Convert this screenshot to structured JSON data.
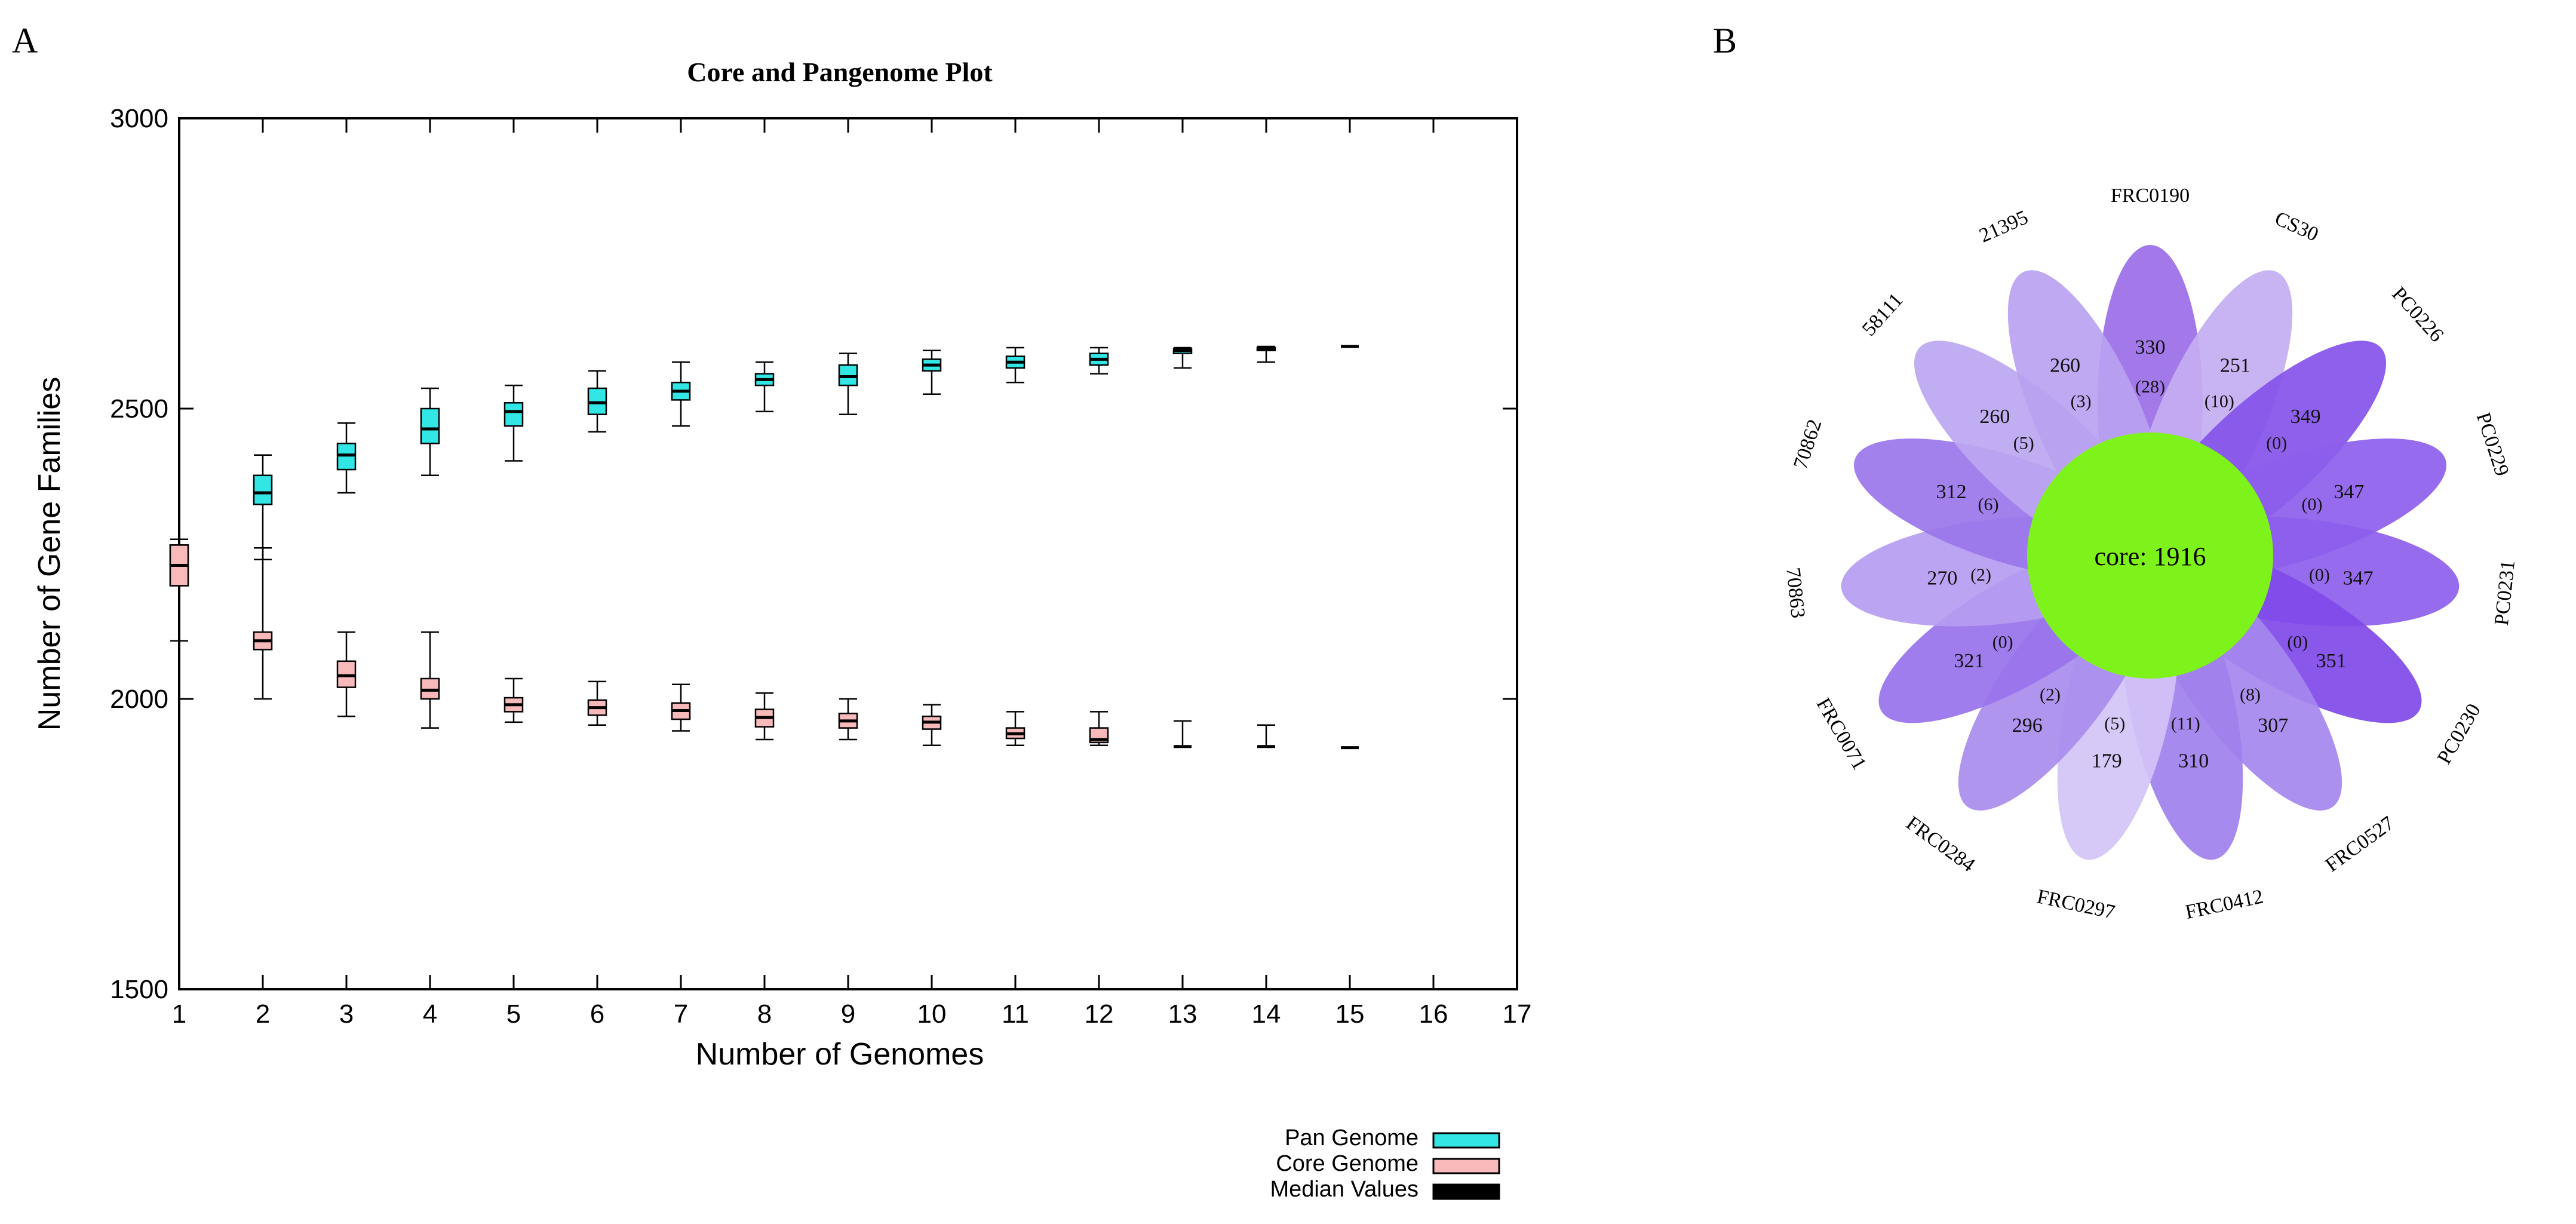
{
  "colors": {
    "pan_fill": "#33e6e6",
    "core_fill": "#f7b9b9",
    "median": "#000000",
    "core_circle": "#7ef31b",
    "petal_text": "#111111",
    "axis": "#000000"
  },
  "panel_a": {
    "label": "A"
  },
  "panel_b": {
    "label": "B"
  },
  "chart_data": [
    {
      "type": "boxplot",
      "title": "Core and Pangenome Plot",
      "xlabel": "Number of Genomes",
      "ylabel": "Number of Gene Families",
      "xlim": [
        1,
        17
      ],
      "ylim": [
        1500,
        3000
      ],
      "xticks": [
        "1",
        "2",
        "3",
        "4",
        "5",
        "6",
        "7",
        "8",
        "9",
        "10",
        "11",
        "12",
        "13",
        "14",
        "15",
        "16",
        "17"
      ],
      "yticks": [
        "1500",
        "2000",
        "2500",
        "3000"
      ],
      "grid": false,
      "legend_position": "bottom-right",
      "legend": [
        "Pan Genome",
        "Core Genome",
        "Median Values"
      ],
      "series": [
        {
          "name": "Pan Genome",
          "boxes": [
            {
              "x": 1,
              "min": 2100,
              "q1": 2195,
              "median": 2230,
              "q3": 2265,
              "max": 2275
            },
            {
              "x": 2,
              "min": 2240,
              "q1": 2335,
              "median": 2355,
              "q3": 2385,
              "max": 2420
            },
            {
              "x": 3,
              "min": 2355,
              "q1": 2395,
              "median": 2420,
              "q3": 2440,
              "max": 2475
            },
            {
              "x": 4,
              "min": 2385,
              "q1": 2440,
              "median": 2465,
              "q3": 2500,
              "max": 2535
            },
            {
              "x": 5,
              "min": 2410,
              "q1": 2470,
              "median": 2495,
              "q3": 2510,
              "max": 2540
            },
            {
              "x": 6,
              "min": 2460,
              "q1": 2490,
              "median": 2510,
              "q3": 2535,
              "max": 2565
            },
            {
              "x": 7,
              "min": 2470,
              "q1": 2515,
              "median": 2530,
              "q3": 2545,
              "max": 2580
            },
            {
              "x": 8,
              "min": 2495,
              "q1": 2540,
              "median": 2550,
              "q3": 2560,
              "max": 2580
            },
            {
              "x": 9,
              "min": 2490,
              "q1": 2540,
              "median": 2555,
              "q3": 2575,
              "max": 2595
            },
            {
              "x": 10,
              "min": 2525,
              "q1": 2565,
              "median": 2575,
              "q3": 2585,
              "max": 2600
            },
            {
              "x": 11,
              "min": 2545,
              "q1": 2570,
              "median": 2580,
              "q3": 2590,
              "max": 2605
            },
            {
              "x": 12,
              "min": 2560,
              "q1": 2575,
              "median": 2585,
              "q3": 2595,
              "max": 2605
            },
            {
              "x": 13,
              "min": 2570,
              "q1": 2595,
              "median": 2600,
              "q3": 2603,
              "max": 2605
            },
            {
              "x": 14,
              "min": 2580,
              "q1": 2600,
              "median": 2603,
              "q3": 2605,
              "max": 2607
            },
            {
              "x": 15,
              "min": 2607,
              "q1": 2607,
              "median": 2607,
              "q3": 2607,
              "max": 2607
            }
          ]
        },
        {
          "name": "Core Genome",
          "boxes": [
            {
              "x": 1,
              "min": 2100,
              "q1": 2195,
              "median": 2230,
              "q3": 2265,
              "max": 2275
            },
            {
              "x": 2,
              "min": 2000,
              "q1": 2085,
              "median": 2100,
              "q3": 2115,
              "max": 2260
            },
            {
              "x": 3,
              "min": 1970,
              "q1": 2020,
              "median": 2040,
              "q3": 2065,
              "max": 2115
            },
            {
              "x": 4,
              "min": 1950,
              "q1": 2000,
              "median": 2015,
              "q3": 2035,
              "max": 2115
            },
            {
              "x": 5,
              "min": 1960,
              "q1": 1978,
              "median": 1990,
              "q3": 2002,
              "max": 2035
            },
            {
              "x": 6,
              "min": 1955,
              "q1": 1972,
              "median": 1985,
              "q3": 1998,
              "max": 2030
            },
            {
              "x": 7,
              "min": 1945,
              "q1": 1965,
              "median": 1980,
              "q3": 1993,
              "max": 2025
            },
            {
              "x": 8,
              "min": 1930,
              "q1": 1952,
              "median": 1968,
              "q3": 1982,
              "max": 2010
            },
            {
              "x": 9,
              "min": 1930,
              "q1": 1950,
              "median": 1962,
              "q3": 1975,
              "max": 2000
            },
            {
              "x": 10,
              "min": 1920,
              "q1": 1948,
              "median": 1960,
              "q3": 1970,
              "max": 1990
            },
            {
              "x": 11,
              "min": 1920,
              "q1": 1932,
              "median": 1940,
              "q3": 1950,
              "max": 1978
            },
            {
              "x": 12,
              "min": 1920,
              "q1": 1925,
              "median": 1930,
              "q3": 1950,
              "max": 1978
            },
            {
              "x": 13,
              "min": 1918,
              "q1": 1918,
              "median": 1918,
              "q3": 1918,
              "max": 1962
            },
            {
              "x": 14,
              "min": 1918,
              "q1": 1918,
              "median": 1918,
              "q3": 1918,
              "max": 1955
            },
            {
              "x": 15,
              "min": 1916,
              "q1": 1916,
              "median": 1916,
              "q3": 1916,
              "max": 1916
            }
          ]
        }
      ]
    },
    {
      "type": "flower",
      "core_label": "core: 1916",
      "petals": [
        {
          "genome": "FRC0190",
          "count": "330",
          "unique": "(28)",
          "color": "#9b6ee8"
        },
        {
          "genome": "CS30",
          "count": "251",
          "unique": "(10)",
          "color": "#c4aef2"
        },
        {
          "genome": "PC0226",
          "count": "349",
          "unique": "(0)",
          "color": "#8453ea"
        },
        {
          "genome": "PC0229",
          "count": "347",
          "unique": "(0)",
          "color": "#8d5eec"
        },
        {
          "genome": "PC0231",
          "count": "347",
          "unique": "(0)",
          "color": "#8d5eec"
        },
        {
          "genome": "PC0230",
          "count": "351",
          "unique": "(0)",
          "color": "#7f4ae9"
        },
        {
          "genome": "FRC0527",
          "count": "307",
          "unique": "(8)",
          "color": "#a587ee"
        },
        {
          "genome": "FRC0412",
          "count": "310",
          "unique": "(11)",
          "color": "#a080ec"
        },
        {
          "genome": "FRC0297",
          "count": "179",
          "unique": "(5)",
          "color": "#d2c3f6"
        },
        {
          "genome": "FRC0284",
          "count": "296",
          "unique": "(2)",
          "color": "#a98cee"
        },
        {
          "genome": "FRC0071",
          "count": "321",
          "unique": "(0)",
          "color": "#9872ea"
        },
        {
          "genome": "70863",
          "count": "270",
          "unique": "(2)",
          "color": "#b59cf0"
        },
        {
          "genome": "70862",
          "count": "312",
          "unique": "(6)",
          "color": "#9a76ea"
        },
        {
          "genome": "58111",
          "count": "260",
          "unique": "(5)",
          "color": "#bca6f1"
        },
        {
          "genome": "21395",
          "count": "260",
          "unique": "(3)",
          "color": "#b9a2f1"
        }
      ]
    }
  ]
}
